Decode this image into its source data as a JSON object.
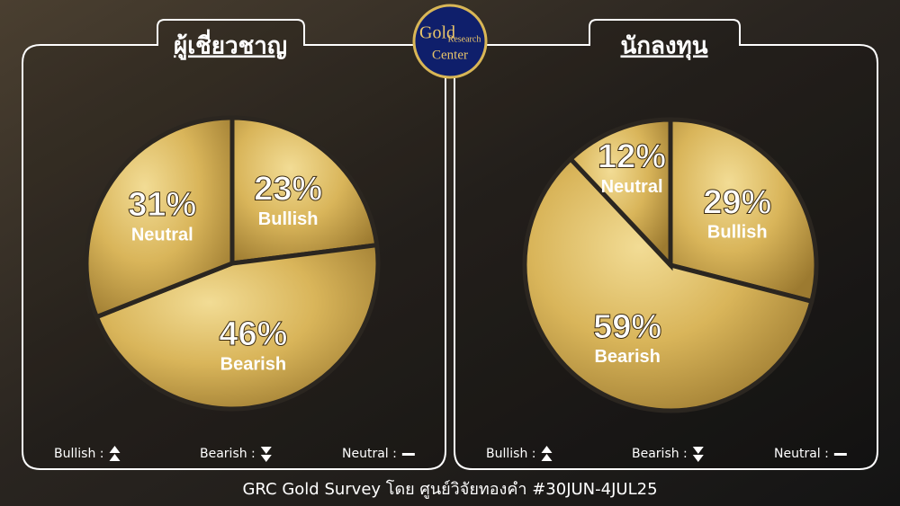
{
  "logo": {
    "line1": "Gold",
    "line2": "Research",
    "line3": "Center"
  },
  "footer": "GRC Gold Survey โดย ศูนย์วิจัยทองคำ #30JUN-4JUL25",
  "chart_data": [
    {
      "type": "pie",
      "title": "ผู้เชี่ยวชาญ",
      "categories": [
        "Bullish",
        "Bearish",
        "Neutral"
      ],
      "values": [
        23,
        46,
        31
      ],
      "value_labels": [
        "23%",
        "46%",
        "31%"
      ],
      "legend_labels": [
        "Bullish :",
        "Bearish :",
        "Neutral :"
      ]
    },
    {
      "type": "pie",
      "title": "นักลงทุน",
      "categories": [
        "Bullish",
        "Bearish",
        "Neutral"
      ],
      "values": [
        29,
        59,
        12
      ],
      "value_labels": [
        "29%",
        "59%",
        "12%"
      ],
      "legend_labels": [
        "Bullish :",
        "Bearish :",
        "Neutral :"
      ]
    }
  ]
}
